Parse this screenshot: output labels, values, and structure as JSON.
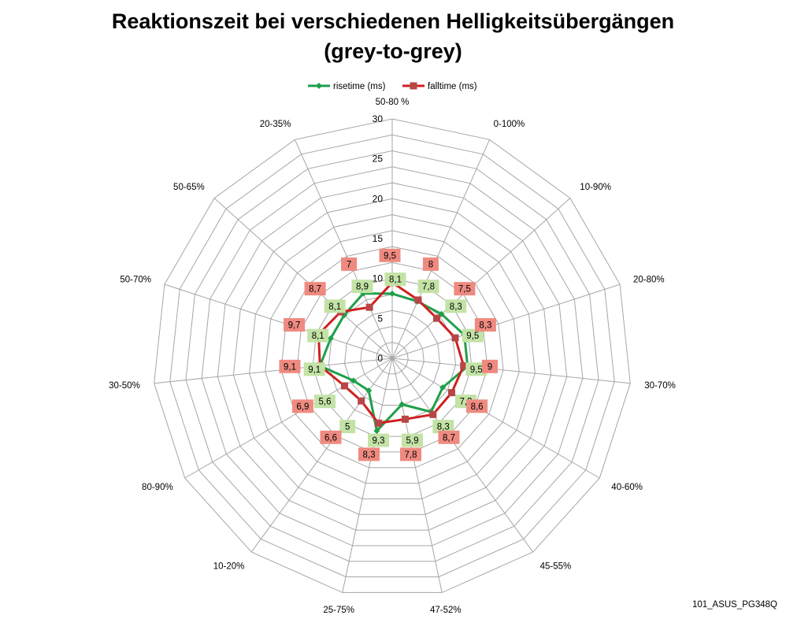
{
  "title": {
    "line1": "Reaktionszeit bei verschiedenen Helligkeitsübergängen",
    "line2": "(grey-to-grey)"
  },
  "footer": "101_ASUS_PG348Q",
  "colors": {
    "rise_line": "#1fa04a",
    "fall_line": "#d0201f",
    "rise_label_bg": "#c3e3a6",
    "fall_label_bg": "#ef8a80",
    "fall_marker": "#b84646",
    "grid": "#a6a6a6"
  },
  "chart_data": {
    "type": "radar",
    "categories": [
      "50-80 %",
      "0-100%",
      "10-90%",
      "20-80%",
      "30-70%",
      "40-60%",
      "45-55%",
      "47-52%",
      "25-75%",
      "10-20%",
      "80-90%",
      "30-50%",
      "50-70%",
      "50-65%",
      "20-35%"
    ],
    "series": [
      {
        "name": "risetime (ms)",
        "values": [
          8.1,
          7.8,
          8.3,
          9.5,
          9.5,
          7.3,
          8.3,
          5.9,
          9.3,
          5,
          5.6,
          9.1,
          8.1,
          8.1,
          8.9
        ],
        "labels": [
          "8,1",
          "7,8",
          "8,3",
          "9,5",
          "9,5",
          "7,3",
          "8,3",
          "5,9",
          "9,3",
          "5",
          "5,6",
          "9,1",
          "8,1",
          "8,1",
          "8,9"
        ]
      },
      {
        "name": "falltime (ms)",
        "values": [
          9.5,
          8,
          7.5,
          8.3,
          9,
          8.6,
          8.7,
          7.8,
          8.3,
          6.6,
          6.9,
          9.1,
          9.7,
          8.7,
          7
        ],
        "labels": [
          "9,5",
          "8",
          "7,5",
          "8,3",
          "9",
          "8,6",
          "8,7",
          "7,8",
          "8,3",
          "6,6",
          "6,9",
          "9,1",
          "9,7",
          "8,7",
          "7"
        ]
      }
    ],
    "r_ticks": [
      "0",
      "5",
      "10",
      "15",
      "20",
      "25",
      "30"
    ],
    "rlim": [
      0,
      30
    ],
    "legend_position": "top",
    "grid": true
  }
}
